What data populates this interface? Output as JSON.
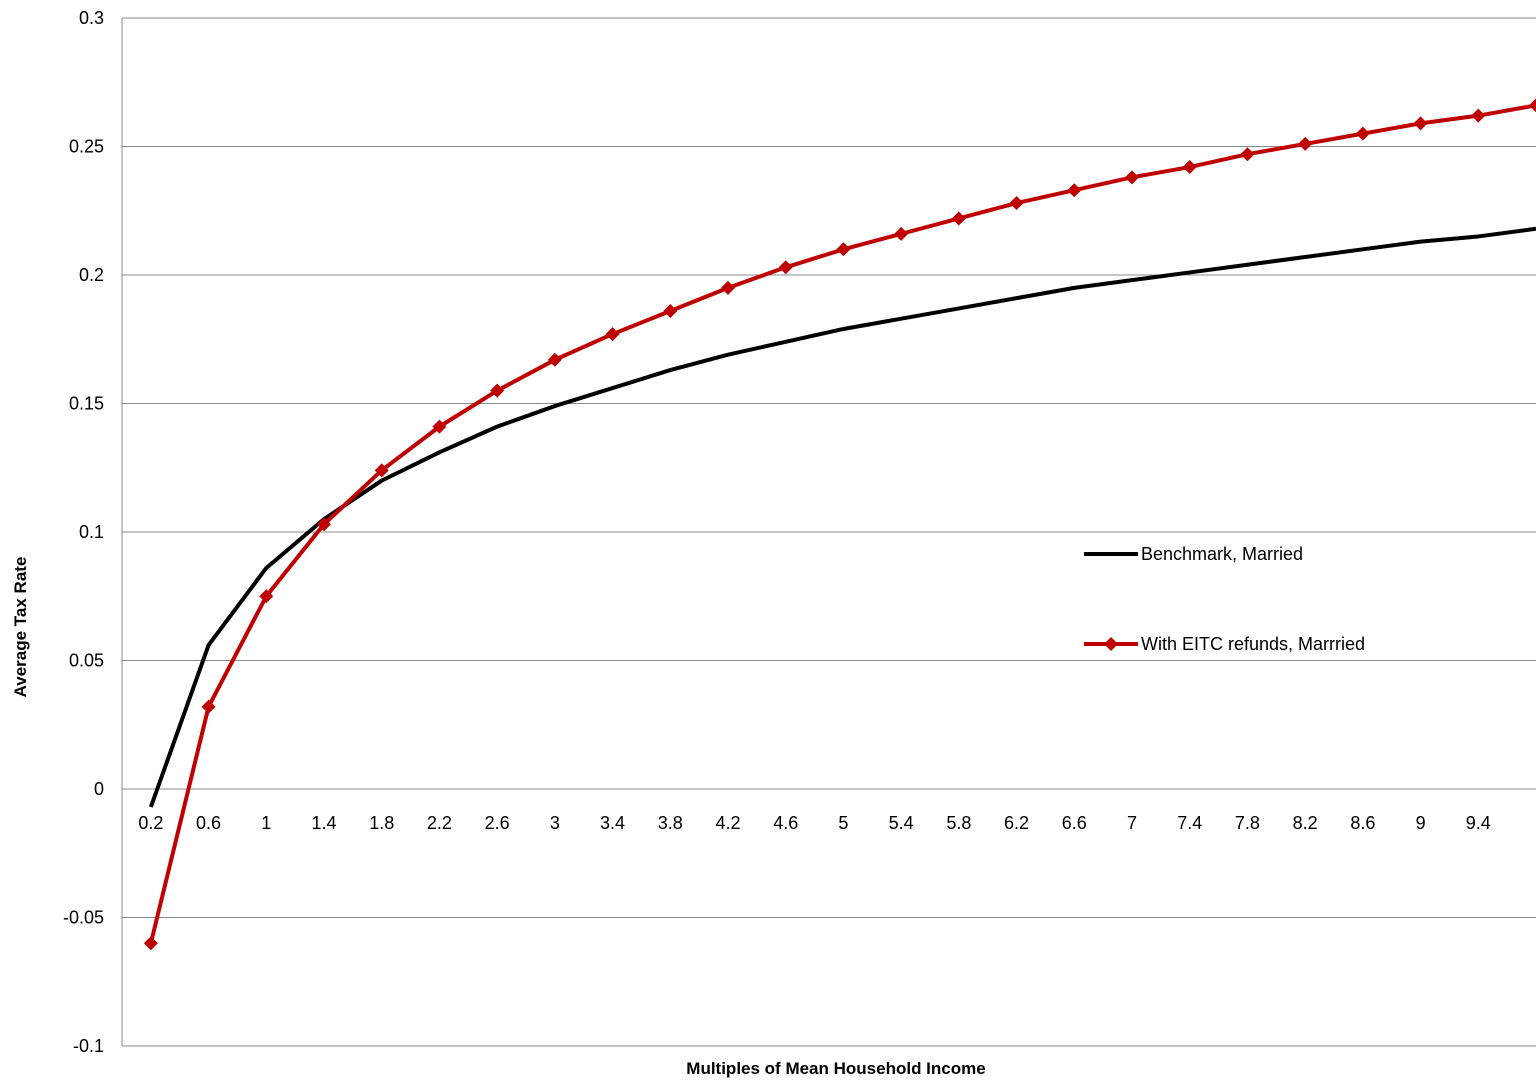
{
  "chart_data": {
    "type": "line",
    "title": "",
    "xlabel": "Multiples of Mean Household Income",
    "ylabel": "Average Tax Rate",
    "ylim": [
      -0.1,
      0.3
    ],
    "y_ticks": [
      "0.3",
      "0.25",
      "0.2",
      "0.15",
      "0.1",
      "0.05",
      "0",
      "-0.05",
      "-0.1"
    ],
    "x_tick_labels": [
      "0.2",
      "0.6",
      "1",
      "1.4",
      "1.8",
      "2.2",
      "2.6",
      "3",
      "3.4",
      "3.8",
      "4.2",
      "4.6",
      "5",
      "5.4",
      "5.8",
      "6.2",
      "6.6",
      "7",
      "7.4",
      "7.8",
      "8.2",
      "8.6",
      "9",
      "9.4"
    ],
    "x": [
      0.2,
      0.6,
      1.0,
      1.4,
      1.8,
      2.2,
      2.6,
      3.0,
      3.4,
      3.8,
      4.2,
      4.6,
      5.0,
      5.4,
      5.8,
      6.2,
      6.6,
      7.0,
      7.4,
      7.8,
      8.2,
      8.6,
      9.0,
      9.4,
      9.8
    ],
    "grid": "horizontal",
    "legend_position": "right",
    "series": [
      {
        "name": "Benchmark, Married",
        "color": "#000000",
        "marker": "none",
        "values": [
          -0.007,
          0.056,
          0.086,
          0.105,
          0.12,
          0.131,
          0.141,
          0.149,
          0.156,
          0.163,
          0.169,
          0.174,
          0.179,
          0.183,
          0.187,
          0.191,
          0.195,
          0.198,
          0.201,
          0.204,
          0.207,
          0.21,
          0.213,
          0.215,
          0.218
        ]
      },
      {
        "name": "With EITC refunds, Marrried",
        "color": "#C00000",
        "marker": "diamond",
        "values": [
          -0.06,
          0.032,
          0.075,
          0.103,
          0.124,
          0.141,
          0.155,
          0.167,
          0.177,
          0.186,
          0.195,
          0.203,
          0.21,
          0.216,
          0.222,
          0.228,
          0.233,
          0.238,
          0.242,
          0.247,
          0.251,
          0.255,
          0.259,
          0.262,
          0.266
        ]
      }
    ]
  }
}
